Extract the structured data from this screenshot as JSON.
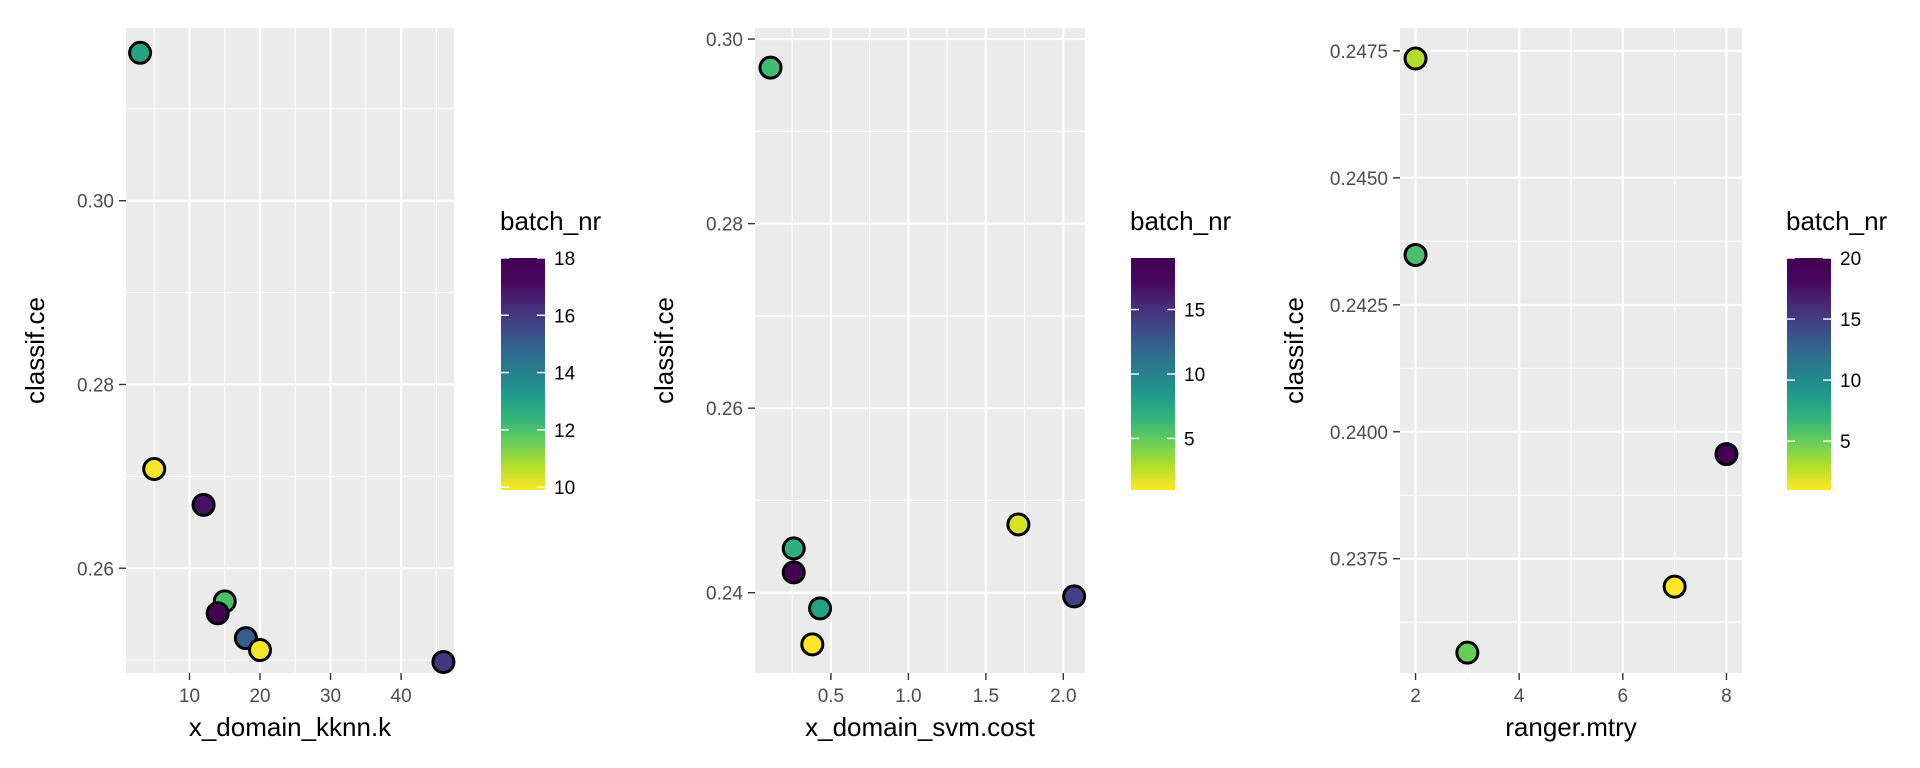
{
  "chart_data": [
    {
      "type": "scatter",
      "xlabel": "x_domain_kknn.k",
      "ylabel": "classif.ce",
      "xlim": [
        1,
        47.5
      ],
      "ylim": [
        0.2486,
        0.3188
      ],
      "xticks": [
        10,
        20,
        30,
        40
      ],
      "yticks": [
        0.26,
        0.28,
        0.3
      ],
      "ytick_labels": [
        "0.26",
        "0.28",
        "0.30"
      ],
      "grid": true,
      "points": [
        {
          "x": 3,
          "y": 0.3161,
          "batch_nr": 13
        },
        {
          "x": 5,
          "y": 0.2708,
          "batch_nr": 10
        },
        {
          "x": 12,
          "y": 0.2669,
          "batch_nr": 17
        },
        {
          "x": 15,
          "y": 0.2564,
          "batch_nr": 12
        },
        {
          "x": 14,
          "y": 0.2551,
          "batch_nr": 18
        },
        {
          "x": 18,
          "y": 0.2524,
          "batch_nr": 15
        },
        {
          "x": 20,
          "y": 0.2511,
          "batch_nr": 10
        },
        {
          "x": 46,
          "y": 0.2498,
          "batch_nr": 16
        }
      ],
      "legend": {
        "title": "batch_nr",
        "min": 9.9,
        "max": 18,
        "ticks": [
          10,
          12,
          14,
          16,
          18
        ],
        "tick_labels": [
          "10",
          "12",
          "14",
          "16",
          "18"
        ],
        "placement": "right"
      }
    },
    {
      "type": "scatter",
      "xlabel": "x_domain_svm.cost",
      "ylabel": "classif.ce",
      "xlim": [
        0.01,
        2.14
      ],
      "ylim": [
        0.2313,
        0.3012
      ],
      "xticks": [
        0.5,
        1.0,
        1.5,
        2.0
      ],
      "xtick_labels": [
        "0.5",
        "1.0",
        "1.5",
        "2.0"
      ],
      "yticks": [
        0.24,
        0.26,
        0.28,
        0.3
      ],
      "ytick_labels": [
        "0.24",
        "0.26",
        "0.28",
        "0.30"
      ],
      "grid": true,
      "points": [
        {
          "x": 0.11,
          "y": 0.2969,
          "batch_nr": 6
        },
        {
          "x": 0.26,
          "y": 0.2448,
          "batch_nr": 7
        },
        {
          "x": 0.26,
          "y": 0.2422,
          "batch_nr": 19
        },
        {
          "x": 0.43,
          "y": 0.2383,
          "batch_nr": 8
        },
        {
          "x": 0.38,
          "y": 0.2344,
          "batch_nr": 1
        },
        {
          "x": 1.71,
          "y": 0.2474,
          "batch_nr": 2
        },
        {
          "x": 2.07,
          "y": 0.2396,
          "batch_nr": 14
        }
      ],
      "legend": {
        "title": "batch_nr",
        "min": 1,
        "max": 19,
        "ticks": [
          5,
          10,
          15
        ],
        "tick_labels": [
          "5",
          "10",
          "15"
        ],
        "placement": "right"
      }
    },
    {
      "type": "scatter",
      "xlabel": "ranger.mtry",
      "ylabel": "classif.ce",
      "xlim": [
        1.7,
        8.3
      ],
      "ylim": [
        0.23525,
        0.24795
      ],
      "xticks": [
        2,
        4,
        6,
        8
      ],
      "yticks": [
        0.2375,
        0.24,
        0.2425,
        0.245,
        0.2475
      ],
      "ytick_labels": [
        "0.2375",
        "0.2400",
        "0.2425",
        "0.2450",
        "0.2475"
      ],
      "grid": true,
      "points": [
        {
          "x": 2,
          "y": 0.24735,
          "batch_nr": 3
        },
        {
          "x": 2,
          "y": 0.24348,
          "batch_nr": 6
        },
        {
          "x": 8,
          "y": 0.23956,
          "batch_nr": 20
        },
        {
          "x": 7,
          "y": 0.23695,
          "batch_nr": 1
        },
        {
          "x": 3,
          "y": 0.23565,
          "batch_nr": 5
        }
      ],
      "legend": {
        "title": "batch_nr",
        "min": 1,
        "max": 20,
        "ticks": [
          5,
          10,
          15,
          20
        ],
        "tick_labels": [
          "5",
          "10",
          "15",
          "20"
        ],
        "placement": "right"
      }
    }
  ]
}
